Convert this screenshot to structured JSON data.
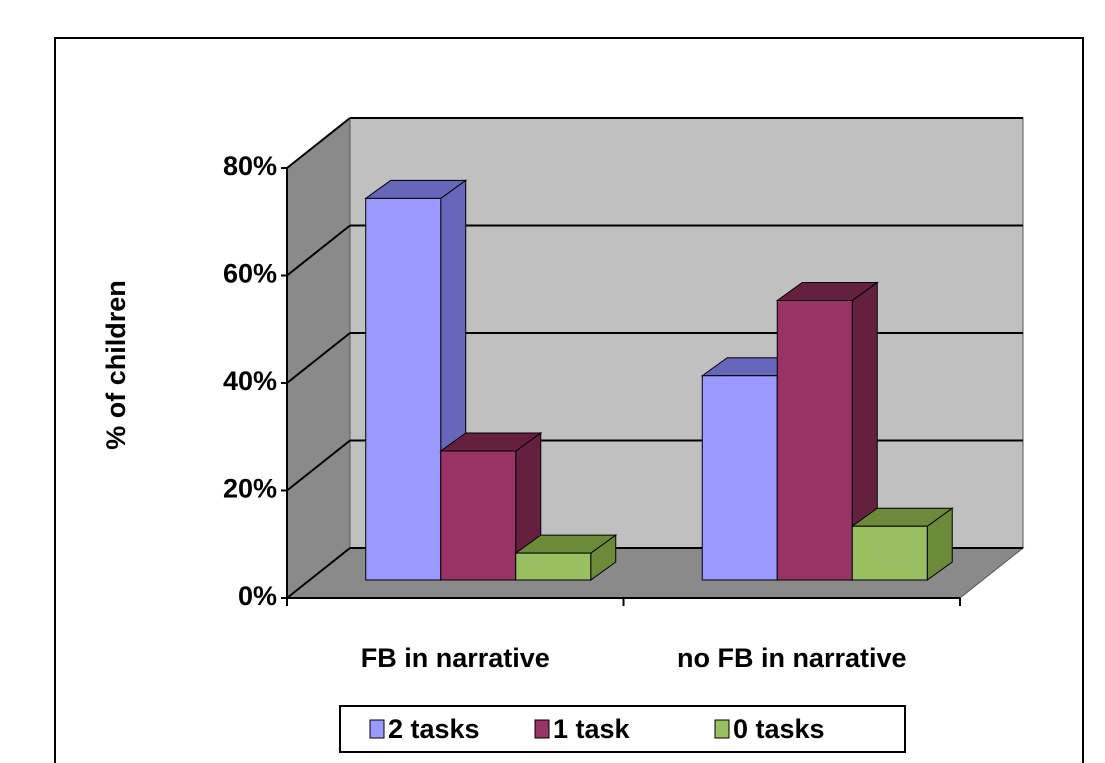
{
  "chart_data": {
    "type": "bar3d",
    "y_axis_label": "% of children",
    "categories": [
      "FB in narrative",
      "no FB in narrative"
    ],
    "series": [
      {
        "name": "2 tasks",
        "color": "#9999ff",
        "side": "#6666bb",
        "values": [
          71,
          38
        ]
      },
      {
        "name": "1 task",
        "color": "#993366",
        "side": "#66203f",
        "values": [
          24,
          52
        ]
      },
      {
        "name": "0 tasks",
        "color": "#99c060",
        "side": "#6b8a3a",
        "values": [
          5,
          10
        ]
      }
    ],
    "ylim": [
      0,
      80
    ],
    "yticks": [
      {
        "value": 0,
        "label": "0%"
      },
      {
        "value": 20,
        "label": "20%"
      },
      {
        "value": 40,
        "label": "40%"
      },
      {
        "value": 60,
        "label": "60%"
      },
      {
        "value": 80,
        "label": "80%"
      }
    ],
    "grid": true,
    "legend": "bottom"
  }
}
